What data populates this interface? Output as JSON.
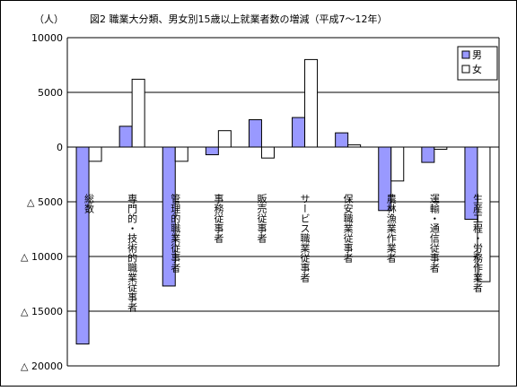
{
  "chart_data": {
    "type": "bar",
    "title": "図2  職業大分類、男女別15歳以上就業者数の増減（平成7～12年）",
    "unit_label": "（人）",
    "ylim": [
      -20000,
      10000
    ],
    "yticks": [
      10000,
      5000,
      0,
      -5000,
      -10000,
      -15000,
      -20000
    ],
    "ytick_labels": [
      "10000",
      "5000",
      "0",
      "△ 5000",
      "△ 10000",
      "△ 15000",
      "△ 20000"
    ],
    "grid": true,
    "legend_position": "top-right",
    "categories": [
      "総数",
      "専門的・技術的職業従事者",
      "管理的職業従事者",
      "事務従事者",
      "販売従事者",
      "サービス職業従事者",
      "保安職業従事者",
      "農林漁業作業者",
      "運輸・通信従事者",
      "生産工程・労務作業者"
    ],
    "series": [
      {
        "name": "男",
        "color": "#9999FF",
        "values": [
          -18000,
          1900,
          -12700,
          -700,
          2500,
          2700,
          1300,
          -5800,
          -1400,
          -6600
        ]
      },
      {
        "name": "女",
        "color": "#FFFFFF",
        "values": [
          -1300,
          6200,
          -1300,
          1500,
          -1000,
          8000,
          200,
          -3100,
          -200,
          -12300
        ]
      }
    ]
  }
}
